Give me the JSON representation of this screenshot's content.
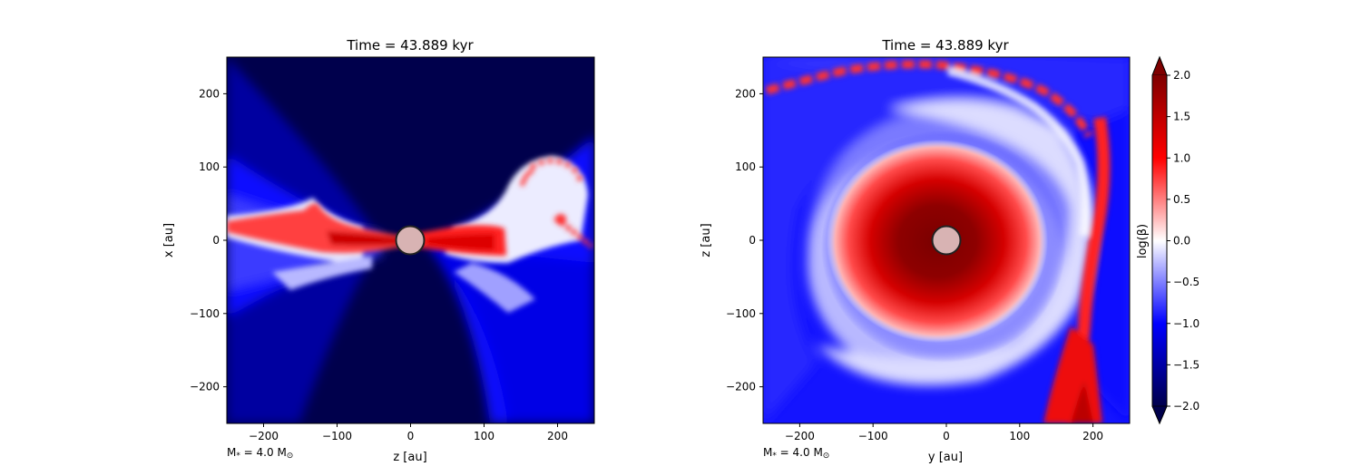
{
  "panels": [
    {
      "title": "Time = 43.889 kyr",
      "xlabel": "z [au]",
      "ylabel": "x [au]",
      "mass_note": "M$_*$ = 4.0 M$_\\odot$",
      "mass_label": {
        "prefix": "M",
        "sub": "*",
        "mid": " = 4.0 M",
        "sub2": "⊙"
      },
      "view": "edge-on",
      "xticks": [
        "−200",
        "−100",
        "0",
        "100",
        "200"
      ],
      "yticks": [
        "200",
        "100",
        "0",
        "−100",
        "−200"
      ]
    },
    {
      "title": "Time = 43.889 kyr",
      "xlabel": "y [au]",
      "ylabel": "z [au]",
      "mass_label": {
        "prefix": "M",
        "sub": "*",
        "mid": " = 4.0 M",
        "sub2": "⊙"
      },
      "view": "face-on",
      "xticks": [
        "−200",
        "−100",
        "0",
        "100",
        "200"
      ],
      "yticks": [
        "200",
        "100",
        "0",
        "−100",
        "−200"
      ]
    }
  ],
  "colorbar": {
    "label": "log(β)",
    "ticks": [
      "2.0",
      "1.5",
      "1.0",
      "0.5",
      "0.0",
      "−0.5",
      "−1.0",
      "−1.5",
      "−2.0"
    ],
    "colormap": "seismic",
    "colors": {
      "low": "#00004c",
      "mid_low": "#0000ff",
      "mid": "#ffffff",
      "mid_high": "#ff0000",
      "high": "#7f0000"
    }
  },
  "chart_data": [
    {
      "type": "heatmap",
      "title": "Time = 43.889 kyr",
      "xlabel": "z [au]",
      "ylabel": "x [au]",
      "xlim": [
        -250,
        250
      ],
      "ylim": [
        -250,
        250
      ],
      "xticks": [
        -200,
        -100,
        0,
        100,
        200
      ],
      "yticks": [
        -200,
        -100,
        0,
        100,
        200
      ],
      "quantity": "log(β)",
      "clim": [
        -2.0,
        2.0
      ],
      "sink_radius_au": 19
    },
    {
      "type": "heatmap",
      "title": "Time = 43.889 kyr",
      "xlabel": "y [au]",
      "ylabel": "z [au]",
      "xlim": [
        -250,
        250
      ],
      "ylim": [
        -250,
        250
      ],
      "xticks": [
        -200,
        -100,
        0,
        100,
        200
      ],
      "yticks": [
        -200,
        -100,
        0,
        100,
        200
      ],
      "quantity": "log(β)",
      "clim": [
        -2.0,
        2.0
      ],
      "sink_radius_au": 19
    }
  ]
}
